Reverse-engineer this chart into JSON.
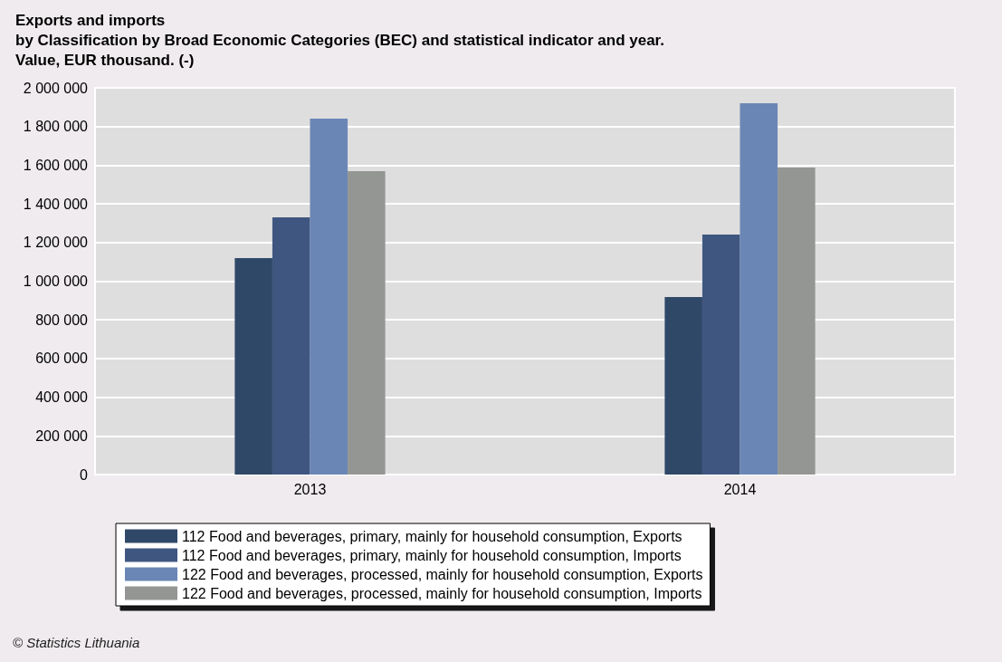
{
  "chart_data": {
    "type": "bar",
    "title": "Exports and imports\nby Classification by Broad Economic Categories (BEC) and statistical indicator and year.\nValue, EUR thousand. (-)",
    "categories": [
      "2013",
      "2014"
    ],
    "series": [
      {
        "name": "112 Food and beverages, primary, mainly for household consumption, Exports",
        "color": "#2f4868",
        "values": [
          1120000,
          918000
        ]
      },
      {
        "name": "112 Food and beverages, primary, mainly for household consumption, Imports",
        "color": "#3f5680",
        "values": [
          1330000,
          1241000
        ]
      },
      {
        "name": "122 Food and beverages, processed, mainly for household consumption, Exports",
        "color": "#6a86b5",
        "values": [
          1841000,
          1920000
        ]
      },
      {
        "name": "122 Food and beverages, processed, mainly for household consumption, Imports",
        "color": "#949694",
        "values": [
          1569000,
          1588000
        ]
      }
    ],
    "ylim": [
      0,
      2000000
    ],
    "yticks": [
      {
        "value": 0,
        "label": "0"
      },
      {
        "value": 200000,
        "label": "200 000"
      },
      {
        "value": 400000,
        "label": "400 000"
      },
      {
        "value": 600000,
        "label": "600 000"
      },
      {
        "value": 800000,
        "label": "800 000"
      },
      {
        "value": 1000000,
        "label": "1 000 000"
      },
      {
        "value": 1200000,
        "label": "1 200 000"
      },
      {
        "value": 1400000,
        "label": "1 400 000"
      },
      {
        "value": 1600000,
        "label": "1 600 000"
      },
      {
        "value": 1800000,
        "label": "1 800 000"
      },
      {
        "value": 2000000,
        "label": "2 000 000"
      }
    ],
    "grid": "y",
    "legend": "bottom",
    "annotations": [
      "© Statistics Lithuania"
    ]
  }
}
